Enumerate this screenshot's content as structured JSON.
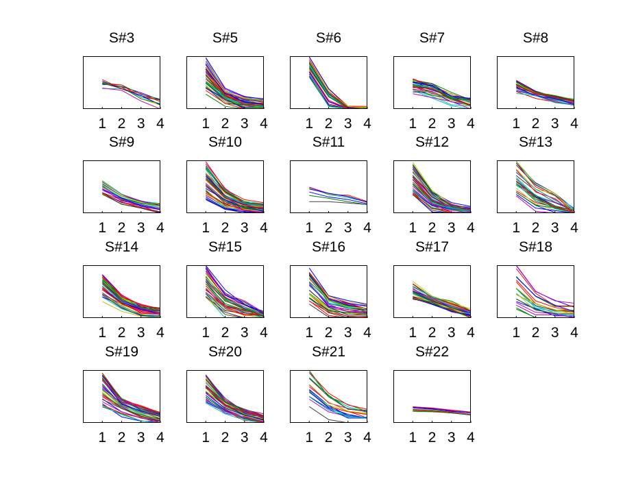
{
  "figure": {
    "background": "#ffffff",
    "axes_color": "#000000",
    "line_palette": [
      "#0000ff",
      "#008000",
      "#ff0000",
      "#00bfbf",
      "#bf00bf",
      "#bfbf00",
      "#404040"
    ]
  },
  "chart_data": {
    "type": "line",
    "layout": "grid 4 rows x 5 columns",
    "xlim": [
      0,
      4
    ],
    "xticks": [
      "1",
      "2",
      "3",
      "4"
    ],
    "ylim": [
      0,
      1
    ],
    "y_ticks_shown": false,
    "grid": false,
    "legend": "none",
    "panels": [
      {
        "title": "S#3",
        "lines": 10,
        "start": [
          0.38,
          0.56
        ],
        "p2": [
          0.3,
          0.45
        ],
        "p3": [
          0.15,
          0.3
        ],
        "end": [
          0.0,
          0.22
        ],
        "jitter": 0.06
      },
      {
        "title": "S#5",
        "lines": 45,
        "start": [
          0.25,
          0.95
        ],
        "p2": [
          0.03,
          0.4
        ],
        "p3": [
          0.0,
          0.22
        ],
        "end": [
          0.0,
          0.15
        ],
        "jitter": 0.05
      },
      {
        "title": "S#6",
        "lines": 25,
        "start": [
          0.62,
          0.98
        ],
        "p2": [
          0.03,
          0.38
        ],
        "p3": [
          0.0,
          0.04
        ],
        "end": [
          0.0,
          0.03
        ],
        "jitter": 0.02
      },
      {
        "title": "S#7",
        "lines": 30,
        "start": [
          0.3,
          0.6
        ],
        "p2": [
          0.22,
          0.48
        ],
        "p3": [
          0.1,
          0.3
        ],
        "end": [
          0.0,
          0.2
        ],
        "jitter": 0.05
      },
      {
        "title": "S#8",
        "lines": 25,
        "start": [
          0.3,
          0.52
        ],
        "p2": [
          0.22,
          0.32
        ],
        "p3": [
          0.12,
          0.25
        ],
        "end": [
          0.05,
          0.18
        ],
        "jitter": 0.03
      },
      {
        "title": "S#9",
        "lines": 22,
        "start": [
          0.35,
          0.62
        ],
        "p2": [
          0.18,
          0.35
        ],
        "p3": [
          0.12,
          0.22
        ],
        "end": [
          0.0,
          0.2
        ],
        "jitter": 0.03
      },
      {
        "title": "S#10",
        "lines": 45,
        "start": [
          0.25,
          0.95
        ],
        "p2": [
          0.02,
          0.45
        ],
        "p3": [
          0.02,
          0.22
        ],
        "end": [
          0.0,
          0.18
        ],
        "jitter": 0.05
      },
      {
        "title": "S#11",
        "lines": 8,
        "start": [
          0.2,
          0.52
        ],
        "p2": [
          0.2,
          0.38
        ],
        "p3": [
          0.16,
          0.34
        ],
        "end": [
          0.16,
          0.22
        ],
        "jitter": 0.02
      },
      {
        "title": "S#12",
        "lines": 40,
        "start": [
          0.35,
          0.95
        ],
        "p2": [
          0.05,
          0.42
        ],
        "p3": [
          0.02,
          0.18
        ],
        "end": [
          0.0,
          0.1
        ],
        "jitter": 0.04
      },
      {
        "title": "S#13",
        "lines": 25,
        "start": [
          0.35,
          0.98
        ],
        "p2": [
          0.02,
          0.55
        ],
        "p3": [
          0.0,
          0.4
        ],
        "end": [
          0.0,
          0.05
        ],
        "jitter": 0.05
      },
      {
        "title": "S#14",
        "lines": 35,
        "start": [
          0.35,
          0.82
        ],
        "p2": [
          0.15,
          0.42
        ],
        "p3": [
          0.05,
          0.25
        ],
        "end": [
          0.0,
          0.18
        ],
        "jitter": 0.04
      },
      {
        "title": "S#15",
        "lines": 35,
        "start": [
          0.35,
          0.98
        ],
        "p2": [
          0.0,
          0.5
        ],
        "p3": [
          0.0,
          0.3
        ],
        "end": [
          0.0,
          0.12
        ],
        "jitter": 0.05
      },
      {
        "title": "S#16",
        "lines": 35,
        "start": [
          0.25,
          0.98
        ],
        "p2": [
          0.02,
          0.42
        ],
        "p3": [
          0.0,
          0.3
        ],
        "end": [
          0.0,
          0.25
        ],
        "jitter": 0.05
      },
      {
        "title": "S#17",
        "lines": 30,
        "start": [
          0.35,
          0.68
        ],
        "p2": [
          0.25,
          0.42
        ],
        "p3": [
          0.12,
          0.3
        ],
        "end": [
          0.02,
          0.16
        ],
        "jitter": 0.03
      },
      {
        "title": "S#18",
        "lines": 20,
        "start": [
          0.2,
          0.98
        ],
        "p2": [
          0.0,
          0.48
        ],
        "p3": [
          0.0,
          0.3
        ],
        "end": [
          0.0,
          0.25
        ],
        "jitter": 0.06
      },
      {
        "title": "S#19",
        "lines": 40,
        "start": [
          0.3,
          0.95
        ],
        "p2": [
          0.12,
          0.45
        ],
        "p3": [
          0.05,
          0.3
        ],
        "end": [
          0.0,
          0.18
        ],
        "jitter": 0.04
      },
      {
        "title": "S#20",
        "lines": 40,
        "start": [
          0.35,
          0.92
        ],
        "p2": [
          0.15,
          0.45
        ],
        "p3": [
          0.05,
          0.25
        ],
        "end": [
          0.0,
          0.15
        ],
        "jitter": 0.04
      },
      {
        "title": "S#21",
        "lines": 18,
        "start": [
          0.25,
          0.98
        ],
        "p2": [
          0.0,
          0.55
        ],
        "p3": [
          0.0,
          0.35
        ],
        "end": [
          0.0,
          0.25
        ],
        "jitter": 0.05
      },
      {
        "title": "S#22",
        "lines": 10,
        "start": [
          0.22,
          0.32
        ],
        "p2": [
          0.21,
          0.28
        ],
        "p3": [
          0.18,
          0.24
        ],
        "end": [
          0.15,
          0.2
        ],
        "jitter": 0.01
      }
    ]
  }
}
